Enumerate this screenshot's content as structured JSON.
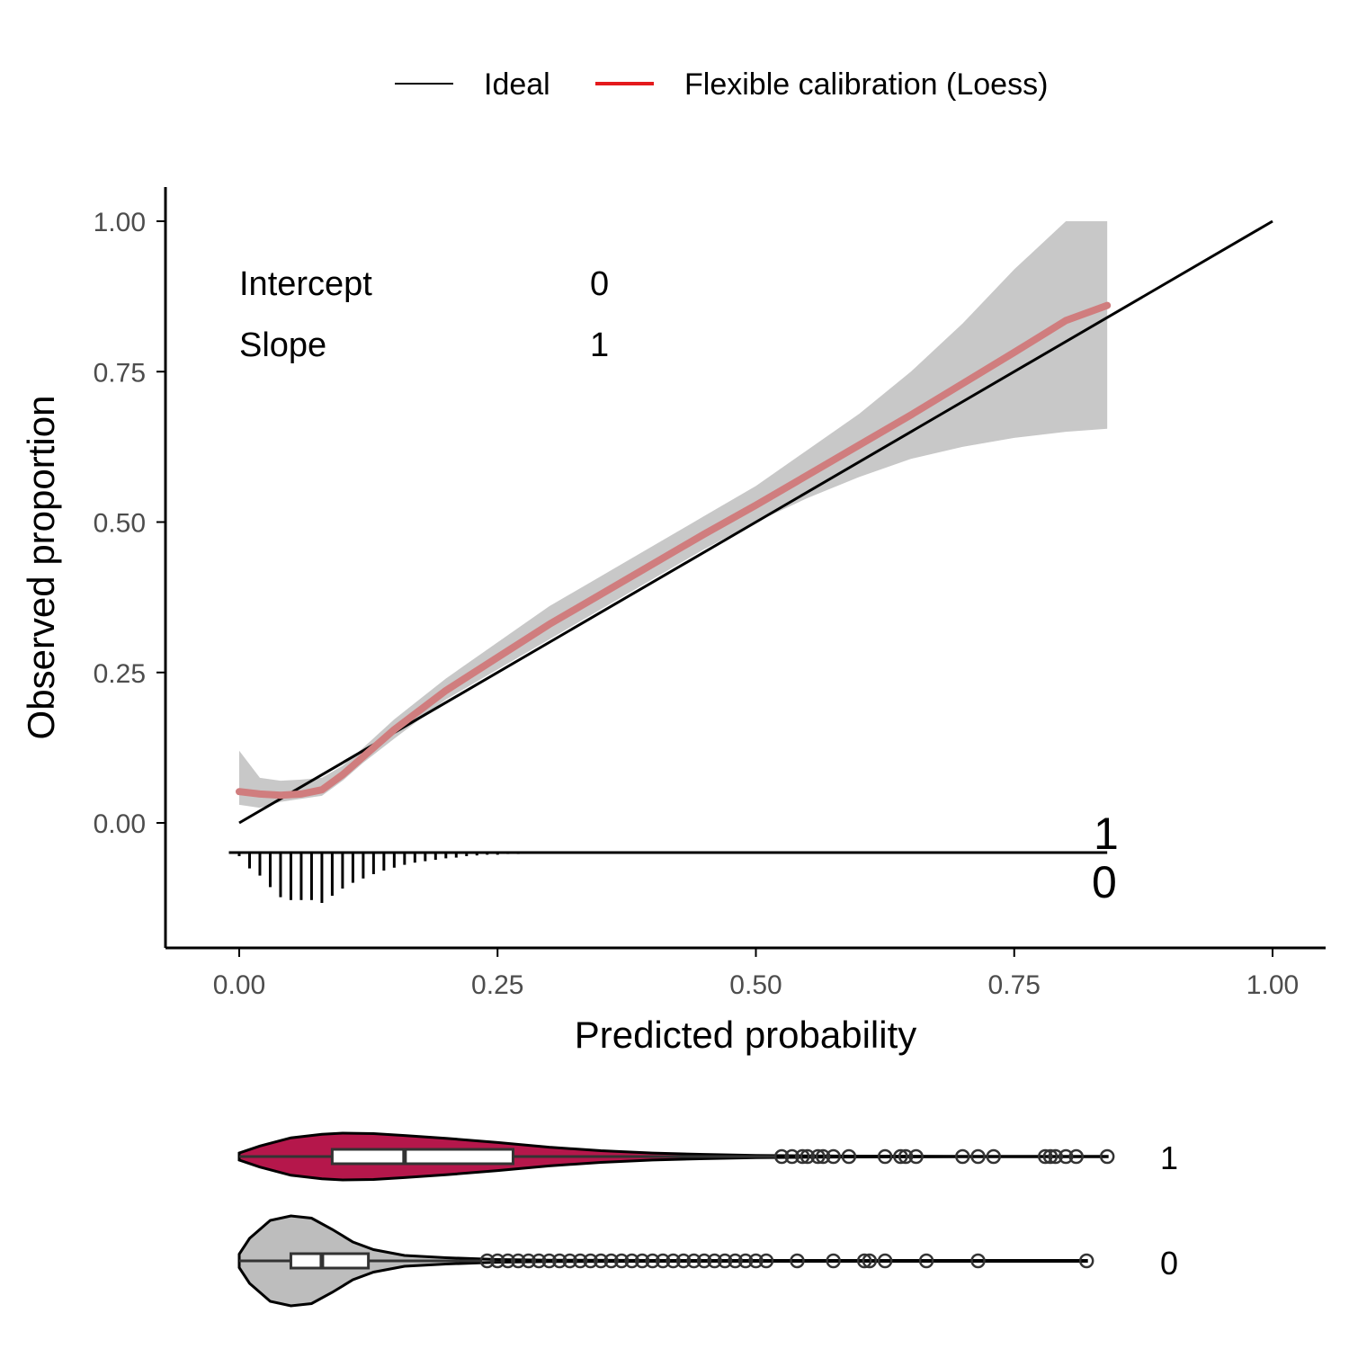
{
  "legend": {
    "items": [
      {
        "label": "Ideal",
        "color": "#000000"
      },
      {
        "label": "Flexible calibration (Loess)",
        "color": "#e41a1c"
      }
    ]
  },
  "stats": {
    "intercept_label": "Intercept",
    "intercept_value": "0",
    "slope_label": "Slope",
    "slope_value": "1"
  },
  "rug": {
    "label_top": "1",
    "label_bottom": "0"
  },
  "violin": {
    "labels": [
      "1",
      "0"
    ],
    "colors": {
      "class1": "#b5174b",
      "class0": "#bdbdbd"
    }
  },
  "chart_data": {
    "type": "line",
    "title": "",
    "xlabel": "Predicted probability",
    "ylabel": "Observed proportion",
    "xlim": [
      -0.07,
      1.05
    ],
    "ylim": [
      -0.2,
      1.05
    ],
    "x_ticks": [
      "0.00",
      "0.25",
      "0.50",
      "0.75",
      "1.00"
    ],
    "y_ticks": [
      "0.00",
      "0.25",
      "0.50",
      "0.75",
      "1.00"
    ],
    "grid": false,
    "legend_position": "top",
    "series": [
      {
        "name": "Ideal",
        "color": "#000000",
        "x": [
          0,
          1
        ],
        "y": [
          0,
          1
        ]
      },
      {
        "name": "Flexible calibration (Loess)",
        "color": "#d07d7e",
        "x": [
          0.0,
          0.02,
          0.04,
          0.06,
          0.08,
          0.1,
          0.12,
          0.15,
          0.2,
          0.25,
          0.3,
          0.35,
          0.4,
          0.45,
          0.5,
          0.55,
          0.6,
          0.65,
          0.7,
          0.75,
          0.8,
          0.84
        ],
        "y": [
          0.052,
          0.048,
          0.046,
          0.048,
          0.055,
          0.08,
          0.11,
          0.155,
          0.22,
          0.275,
          0.33,
          0.38,
          0.43,
          0.48,
          0.528,
          0.578,
          0.628,
          0.678,
          0.73,
          0.782,
          0.835,
          0.86
        ],
        "ci_lower": [
          0.03,
          0.025,
          0.035,
          0.04,
          0.045,
          0.07,
          0.1,
          0.14,
          0.205,
          0.255,
          0.305,
          0.355,
          0.405,
          0.455,
          0.5,
          0.54,
          0.575,
          0.605,
          0.625,
          0.64,
          0.65,
          0.655
        ],
        "ci_upper": [
          0.12,
          0.075,
          0.07,
          0.072,
          0.075,
          0.095,
          0.125,
          0.172,
          0.24,
          0.3,
          0.36,
          0.41,
          0.46,
          0.51,
          0.56,
          0.62,
          0.68,
          0.75,
          0.83,
          0.92,
          1.0,
          1.0
        ]
      }
    ],
    "rug_outcome1": {
      "x": [
        0.0,
        0.01,
        0.02,
        0.03,
        0.04,
        0.05,
        0.06,
        0.07,
        0.08,
        0.09,
        0.1,
        0.11,
        0.12,
        0.13,
        0.14,
        0.15,
        0.16,
        0.17,
        0.18,
        0.19,
        0.2,
        0.21,
        0.22,
        0.23,
        0.24,
        0.25,
        0.26,
        0.27,
        0.28,
        0.29,
        0.3,
        0.32,
        0.34,
        0.36,
        0.38,
        0.4,
        0.42,
        0.44,
        0.46,
        0.48,
        0.5,
        0.52,
        0.54,
        0.56,
        0.58,
        0.6,
        0.62,
        0.64,
        0.66,
        0.68,
        0.7,
        0.72,
        0.74,
        0.76,
        0.78,
        0.8,
        0.82,
        0.84
      ],
      "height": [
        0.004,
        0.004,
        0.004,
        0.004,
        0.004,
        0.004,
        0.004,
        0.004,
        0.004,
        0.004,
        0.004,
        0.004,
        0.004,
        0.004,
        0.004,
        0.004,
        0.004,
        0.004,
        0.004,
        0.004,
        0.004,
        0.004,
        0.004,
        0.004,
        0.004,
        0.004,
        0.004,
        0.004,
        0.004,
        0.004,
        0.004,
        0.004,
        0.004,
        0.004,
        0.004,
        0.004,
        0.004,
        0.004,
        0.004,
        0.004,
        0.004,
        0.004,
        0.004,
        0.004,
        0.004,
        0.004,
        0.004,
        0.004,
        0.004,
        0.004,
        0.004,
        0.004,
        0.004,
        0.004,
        0.004,
        0.004,
        0.004,
        0.004
      ]
    },
    "rug_outcome0": {
      "x": [
        0.0,
        0.01,
        0.02,
        0.03,
        0.04,
        0.05,
        0.06,
        0.07,
        0.08,
        0.09,
        0.1,
        0.11,
        0.12,
        0.13,
        0.14,
        0.15,
        0.16,
        0.17,
        0.18,
        0.19,
        0.2,
        0.21,
        0.22,
        0.23,
        0.24,
        0.25,
        0.26,
        0.27
      ],
      "height": [
        0.005,
        0.022,
        0.032,
        0.048,
        0.062,
        0.066,
        0.066,
        0.066,
        0.07,
        0.06,
        0.05,
        0.042,
        0.036,
        0.03,
        0.025,
        0.021,
        0.017,
        0.014,
        0.012,
        0.01,
        0.008,
        0.007,
        0.005,
        0.004,
        0.003,
        0.003,
        0.002,
        0.002
      ]
    },
    "violin_class1": {
      "median": 0.16,
      "q1": 0.09,
      "q3": 0.265,
      "whisker_low": 0.0,
      "whisker_high": 0.52,
      "density_x": [
        0.0,
        0.02,
        0.05,
        0.08,
        0.1,
        0.13,
        0.16,
        0.2,
        0.25,
        0.3,
        0.35,
        0.4,
        0.45,
        0.5,
        0.55,
        0.6,
        0.7,
        0.8,
        0.84
      ],
      "density_w": [
        0.15,
        0.45,
        0.8,
        0.95,
        1.0,
        0.98,
        0.9,
        0.78,
        0.6,
        0.4,
        0.25,
        0.15,
        0.09,
        0.05,
        0.03,
        0.02,
        0.01,
        0.01,
        0.01
      ],
      "outliers": [
        0.525,
        0.535,
        0.545,
        0.55,
        0.56,
        0.565,
        0.575,
        0.59,
        0.625,
        0.64,
        0.645,
        0.655,
        0.7,
        0.715,
        0.73,
        0.78,
        0.785,
        0.79,
        0.8,
        0.81,
        0.84
      ]
    },
    "violin_class0": {
      "median": 0.08,
      "q1": 0.05,
      "q3": 0.125,
      "whisker_low": 0.0,
      "whisker_high": 0.235,
      "density_x": [
        0.0,
        0.01,
        0.03,
        0.05,
        0.07,
        0.09,
        0.11,
        0.13,
        0.16,
        0.2,
        0.25,
        0.3,
        0.4,
        0.5,
        0.6,
        0.7,
        0.82
      ],
      "density_w": [
        0.15,
        0.5,
        0.9,
        1.0,
        0.95,
        0.7,
        0.42,
        0.25,
        0.12,
        0.07,
        0.03,
        0.015,
        0.01,
        0.01,
        0.01,
        0.01,
        0.01
      ],
      "outliers": [
        0.24,
        0.25,
        0.26,
        0.27,
        0.28,
        0.29,
        0.3,
        0.31,
        0.32,
        0.33,
        0.34,
        0.35,
        0.36,
        0.37,
        0.38,
        0.39,
        0.4,
        0.41,
        0.42,
        0.43,
        0.44,
        0.45,
        0.46,
        0.47,
        0.48,
        0.49,
        0.5,
        0.51,
        0.54,
        0.575,
        0.605,
        0.61,
        0.625,
        0.665,
        0.715,
        0.82
      ]
    }
  }
}
